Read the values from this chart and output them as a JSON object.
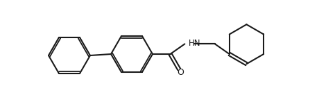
{
  "bg_color": "#ffffff",
  "line_color": "#1a1a1a",
  "line_width": 1.5,
  "figsize": [
    4.47,
    1.5
  ],
  "dpi": 100
}
